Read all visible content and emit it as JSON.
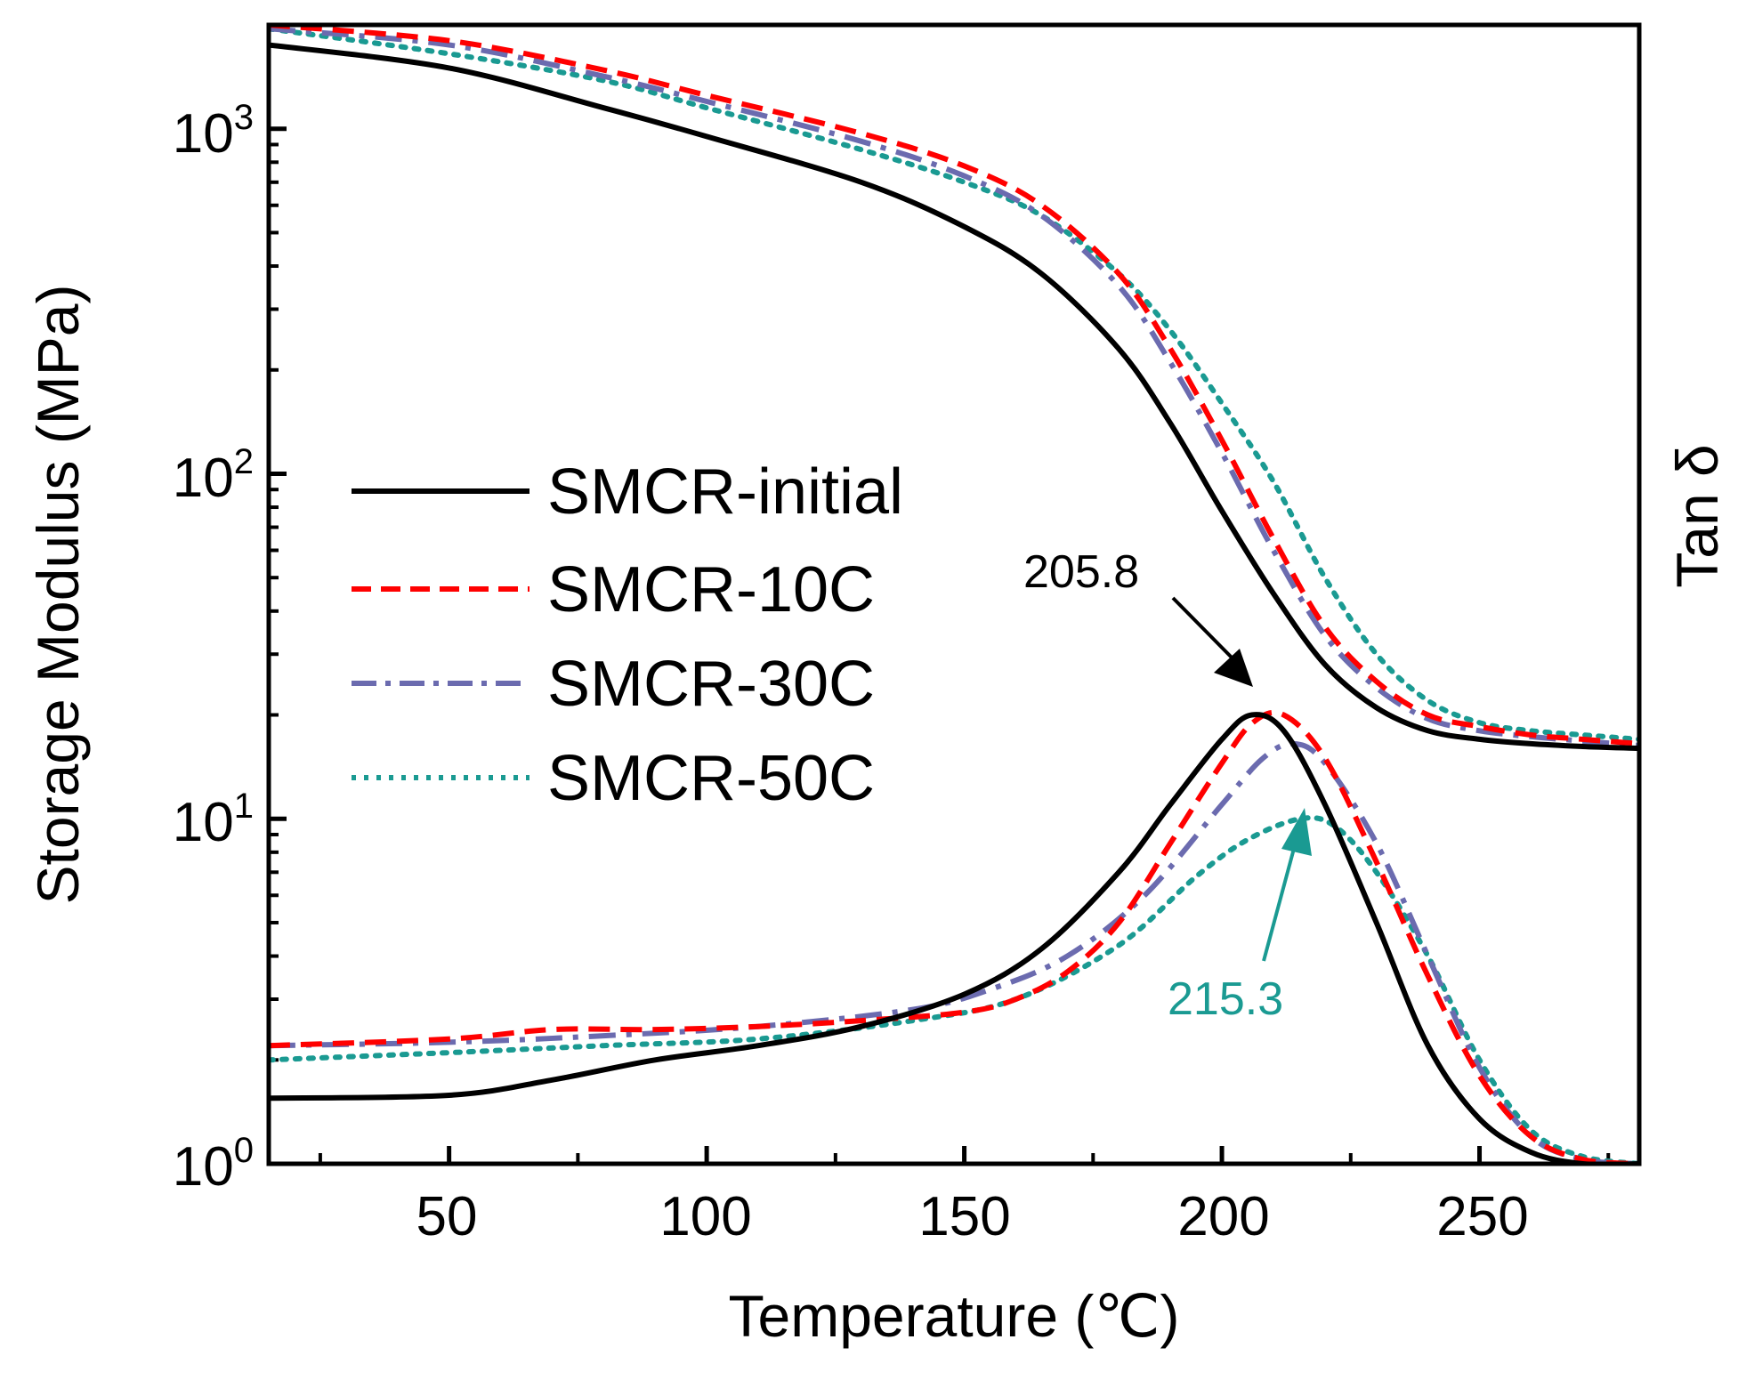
{
  "chart_data": {
    "type": "line",
    "xlabel": "Temperature (℃)",
    "ylabel_left": "Storage Modulus (MPa)",
    "ylabel_right": "Tan δ",
    "xlim": [
      15,
      281
    ],
    "ylim_log": [
      1,
      2000
    ],
    "x_ticks": [
      50,
      100,
      150,
      200,
      250
    ],
    "x_tick_labels": [
      "50",
      "100",
      "150",
      "200",
      "250"
    ],
    "y_ticks": [
      {
        "base": "10",
        "exp": "0",
        "value": 1
      },
      {
        "base": "10",
        "exp": "1",
        "value": 10
      },
      {
        "base": "10",
        "exp": "2",
        "value": 100
      },
      {
        "base": "10",
        "exp": "3",
        "value": 1000
      }
    ],
    "legend": {
      "position": "center-left"
    },
    "series": [
      {
        "name": "SMCR-initial",
        "color": "#000000",
        "dash": "solid",
        "storage_modulus": [
          [
            15,
            1750
          ],
          [
            50,
            1500
          ],
          [
            80,
            1150
          ],
          [
            100,
            950
          ],
          [
            130,
            700
          ],
          [
            150,
            520
          ],
          [
            165,
            380
          ],
          [
            180,
            230
          ],
          [
            190,
            140
          ],
          [
            200,
            78
          ],
          [
            210,
            45
          ],
          [
            220,
            28
          ],
          [
            230,
            21
          ],
          [
            240,
            18
          ],
          [
            250,
            17
          ],
          [
            260,
            16.5
          ],
          [
            270,
            16.2
          ],
          [
            281,
            16
          ]
        ],
        "tan_delta_curve": [
          [
            15,
            1.55
          ],
          [
            50,
            1.58
          ],
          [
            70,
            1.75
          ],
          [
            90,
            2.0
          ],
          [
            110,
            2.2
          ],
          [
            130,
            2.5
          ],
          [
            150,
            3.1
          ],
          [
            165,
            4.2
          ],
          [
            180,
            7.0
          ],
          [
            190,
            11
          ],
          [
            200,
            17
          ],
          [
            205.8,
            20
          ],
          [
            212,
            18
          ],
          [
            220,
            11
          ],
          [
            230,
            5
          ],
          [
            240,
            2.2
          ],
          [
            250,
            1.35
          ],
          [
            260,
            1.08
          ],
          [
            270,
            1.0
          ],
          [
            281,
            1.0
          ]
        ]
      },
      {
        "name": "SMCR-10C",
        "color": "#ff0000",
        "dash": "dashed",
        "storage_modulus": [
          [
            15,
            2000
          ],
          [
            50,
            1800
          ],
          [
            80,
            1480
          ],
          [
            100,
            1250
          ],
          [
            130,
            970
          ],
          [
            150,
            780
          ],
          [
            165,
            600
          ],
          [
            180,
            380
          ],
          [
            190,
            230
          ],
          [
            200,
            125
          ],
          [
            210,
            65
          ],
          [
            220,
            36
          ],
          [
            230,
            25
          ],
          [
            240,
            20
          ],
          [
            250,
            18.5
          ],
          [
            260,
            17.5
          ],
          [
            270,
            17
          ],
          [
            281,
            16.5
          ]
        ],
        "tan_delta_curve": [
          [
            15,
            2.2
          ],
          [
            50,
            2.3
          ],
          [
            70,
            2.45
          ],
          [
            90,
            2.45
          ],
          [
            110,
            2.5
          ],
          [
            130,
            2.6
          ],
          [
            150,
            2.75
          ],
          [
            160,
            3.0
          ],
          [
            170,
            3.6
          ],
          [
            180,
            5.0
          ],
          [
            190,
            8.5
          ],
          [
            200,
            14.5
          ],
          [
            206,
            19
          ],
          [
            212,
            20
          ],
          [
            220,
            15
          ],
          [
            230,
            7.5
          ],
          [
            240,
            3.5
          ],
          [
            250,
            1.8
          ],
          [
            260,
            1.2
          ],
          [
            270,
            1.03
          ],
          [
            281,
            1.0
          ]
        ]
      },
      {
        "name": "SMCR-30C",
        "color": "#6b6baf",
        "dash": "dashdot",
        "storage_modulus": [
          [
            15,
            1950
          ],
          [
            50,
            1750
          ],
          [
            80,
            1420
          ],
          [
            100,
            1200
          ],
          [
            130,
            920
          ],
          [
            150,
            730
          ],
          [
            165,
            560
          ],
          [
            180,
            350
          ],
          [
            190,
            210
          ],
          [
            200,
            115
          ],
          [
            210,
            60
          ],
          [
            220,
            34
          ],
          [
            230,
            24
          ],
          [
            240,
            19.5
          ],
          [
            250,
            18
          ],
          [
            260,
            17.3
          ],
          [
            270,
            16.8
          ],
          [
            281,
            16.3
          ]
        ],
        "tan_delta_curve": [
          [
            15,
            2.2
          ],
          [
            50,
            2.25
          ],
          [
            80,
            2.35
          ],
          [
            110,
            2.5
          ],
          [
            140,
            2.8
          ],
          [
            155,
            3.2
          ],
          [
            170,
            4.0
          ],
          [
            185,
            6.0
          ],
          [
            200,
            11
          ],
          [
            208,
            15
          ],
          [
            214,
            16.5
          ],
          [
            220,
            14.5
          ],
          [
            230,
            8.5
          ],
          [
            240,
            4.0
          ],
          [
            250,
            1.9
          ],
          [
            260,
            1.2
          ],
          [
            270,
            1.03
          ],
          [
            281,
            1.0
          ]
        ]
      },
      {
        "name": "SMCR-50C",
        "color": "#1a9a92",
        "dash": "dotted",
        "storage_modulus": [
          [
            15,
            1950
          ],
          [
            50,
            1650
          ],
          [
            80,
            1380
          ],
          [
            100,
            1150
          ],
          [
            130,
            870
          ],
          [
            150,
            700
          ],
          [
            165,
            560
          ],
          [
            180,
            380
          ],
          [
            190,
            260
          ],
          [
            200,
            160
          ],
          [
            210,
            95
          ],
          [
            220,
            50
          ],
          [
            230,
            30
          ],
          [
            240,
            22
          ],
          [
            250,
            19
          ],
          [
            260,
            18
          ],
          [
            270,
            17.5
          ],
          [
            281,
            17
          ]
        ],
        "tan_delta_curve": [
          [
            15,
            2.0
          ],
          [
            50,
            2.1
          ],
          [
            80,
            2.2
          ],
          [
            110,
            2.3
          ],
          [
            140,
            2.6
          ],
          [
            160,
            3.0
          ],
          [
            180,
            4.3
          ],
          [
            195,
            6.8
          ],
          [
            205,
            8.7
          ],
          [
            215.3,
            10
          ],
          [
            222,
            9.5
          ],
          [
            230,
            7.0
          ],
          [
            240,
            4.0
          ],
          [
            250,
            2.0
          ],
          [
            260,
            1.25
          ],
          [
            270,
            1.05
          ],
          [
            281,
            1.0
          ]
        ]
      }
    ],
    "annotations": [
      {
        "text": "205.8",
        "color": "#000000",
        "points_to_x": 205.8,
        "series": "SMCR-initial"
      },
      {
        "text": "215.3",
        "color": "#1a9a92",
        "points_to_x": 215.3,
        "series": "SMCR-50C"
      }
    ]
  }
}
